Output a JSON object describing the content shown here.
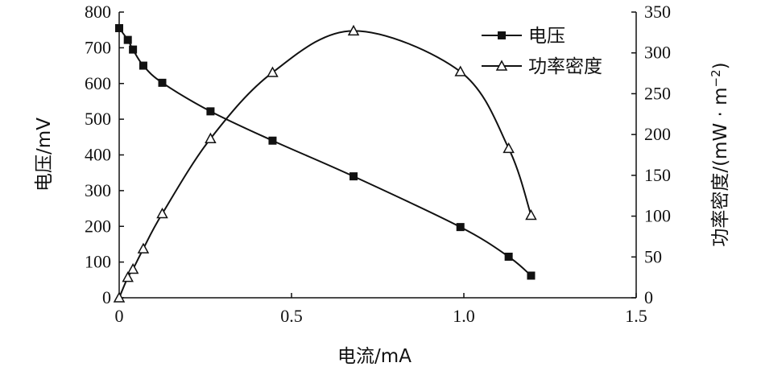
{
  "chart_data": {
    "type": "line",
    "xlabel": "电流/mA",
    "ylabel_left": "电压/mV",
    "ylabel_right": "功率密度/(mW · m",
    "ylabel_right_sup": "−2",
    "ylabel_right_close": ")",
    "xlim": [
      0,
      1.5
    ],
    "ylim_left": [
      0,
      800
    ],
    "ylim_right": [
      0,
      350
    ],
    "xticks": [
      "0",
      "0.5",
      "1.0",
      "1.5"
    ],
    "yticks_left": [
      "0",
      "100",
      "200",
      "300",
      "400",
      "500",
      "600",
      "700",
      "800"
    ],
    "yticks_right": [
      "0",
      "50",
      "100",
      "150",
      "200",
      "250",
      "300",
      "350"
    ],
    "legend_position": "top-right",
    "series": [
      {
        "name": "电压",
        "axis": "left",
        "marker": "square",
        "x": [
          0.0,
          0.025,
          0.04,
          0.07,
          0.125,
          0.265,
          0.445,
          0.68,
          0.99,
          1.13,
          1.195
        ],
        "y": [
          755,
          722,
          695,
          650,
          602,
          522,
          440,
          340,
          198,
          115,
          62
        ]
      },
      {
        "name": "功率密度",
        "axis": "right",
        "marker": "triangle",
        "x": [
          0.0,
          0.025,
          0.04,
          0.07,
          0.125,
          0.265,
          0.445,
          0.68,
          0.99,
          1.13,
          1.195
        ],
        "y": [
          0,
          25,
          35,
          60,
          103,
          195,
          276,
          327,
          277,
          183,
          101
        ]
      }
    ]
  }
}
